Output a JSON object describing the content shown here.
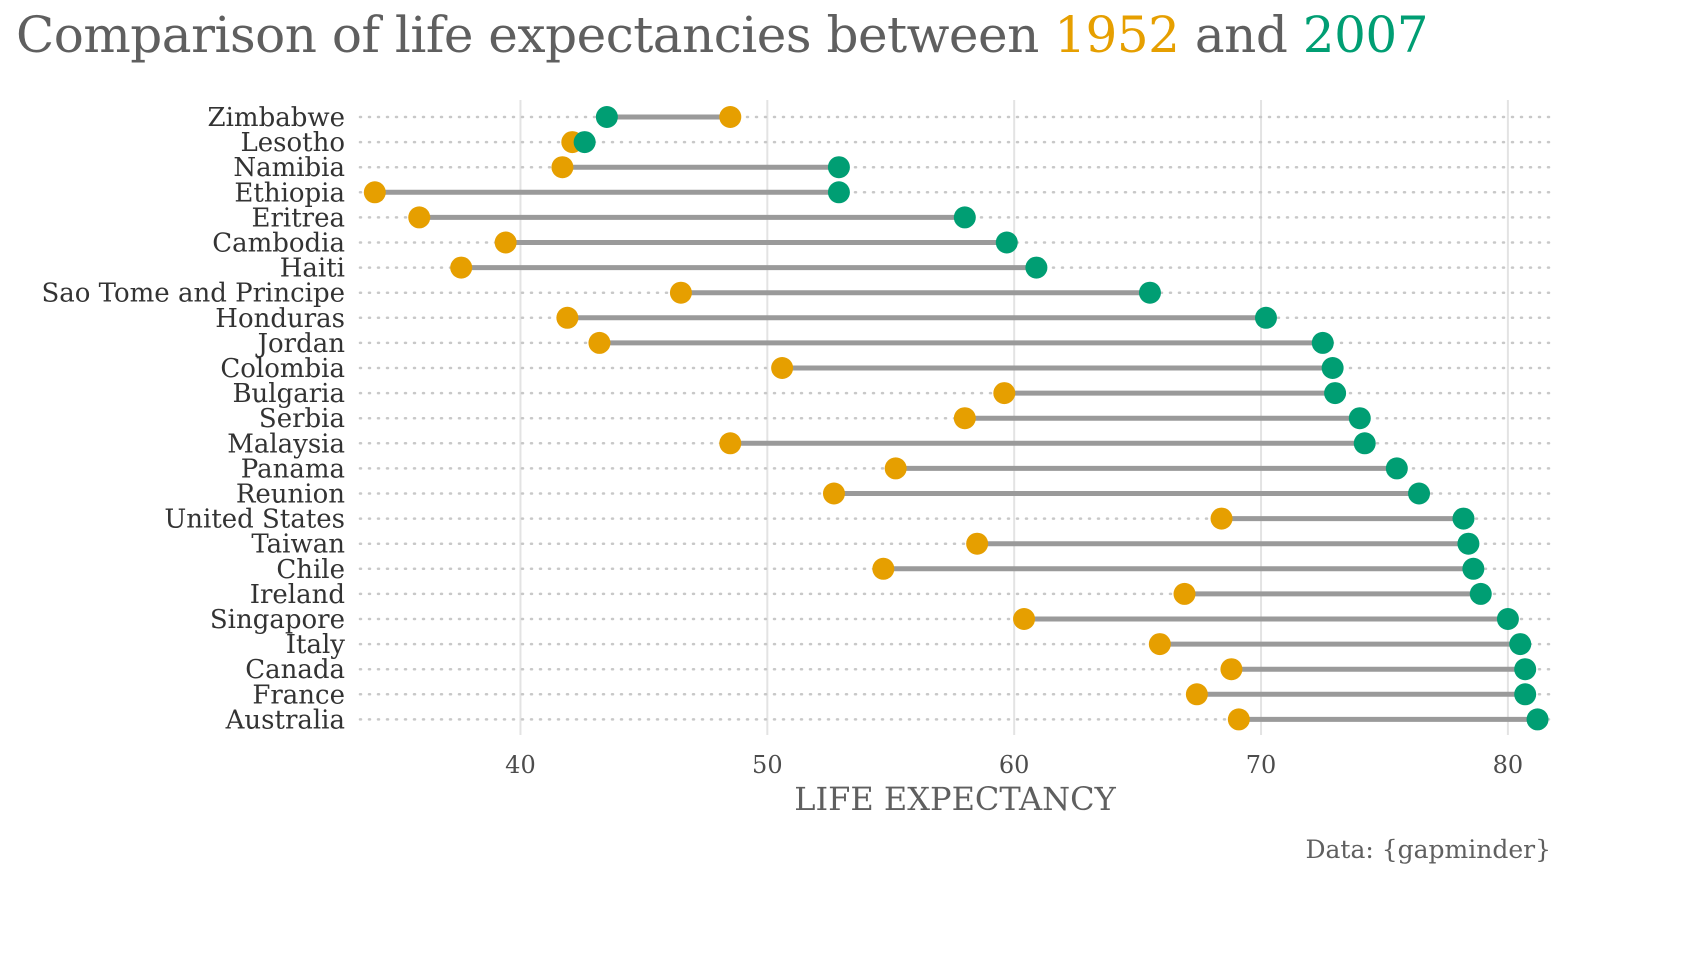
{
  "title": {
    "prefix": "Comparison of life expectancies between ",
    "year1": "1952",
    "mid": " and ",
    "year2": "2007"
  },
  "caption": "Data: {gapminder}",
  "colors": {
    "y1952": "#E69F00",
    "y2007": "#009E73",
    "segment": "#9a9a9a"
  },
  "chart_data": {
    "type": "scatter",
    "subtype": "dumbbell",
    "title": "Comparison of life expectancies between 1952 and 2007",
    "xlabel": "LIFE EXPECTANCY",
    "ylabel": "",
    "xlim": [
      33.5,
      81.3
    ],
    "xticks": [
      40,
      50,
      60,
      70,
      80
    ],
    "grid": true,
    "categories": [
      "Zimbabwe",
      "Lesotho",
      "Namibia",
      "Ethiopia",
      "Eritrea",
      "Cambodia",
      "Haiti",
      "Sao Tome and Principe",
      "Honduras",
      "Jordan",
      "Colombia",
      "Bulgaria",
      "Serbia",
      "Malaysia",
      "Panama",
      "Reunion",
      "United States",
      "Taiwan",
      "Chile",
      "Ireland",
      "Singapore",
      "Italy",
      "Canada",
      "France",
      "Australia"
    ],
    "series": [
      {
        "name": "1952",
        "values": [
          48.5,
          42.1,
          41.7,
          34.1,
          35.9,
          39.4,
          37.6,
          46.5,
          41.9,
          43.2,
          50.6,
          59.6,
          58.0,
          48.5,
          55.2,
          52.7,
          68.4,
          58.5,
          54.7,
          66.9,
          60.4,
          65.9,
          68.8,
          67.4,
          69.1
        ]
      },
      {
        "name": "2007",
        "values": [
          43.5,
          42.6,
          52.9,
          52.9,
          58.0,
          59.7,
          60.9,
          65.5,
          70.2,
          72.5,
          72.9,
          73.0,
          74.0,
          74.2,
          75.5,
          76.4,
          78.2,
          78.4,
          78.6,
          78.9,
          80.0,
          80.5,
          80.7,
          80.7,
          81.2
        ]
      }
    ]
  }
}
